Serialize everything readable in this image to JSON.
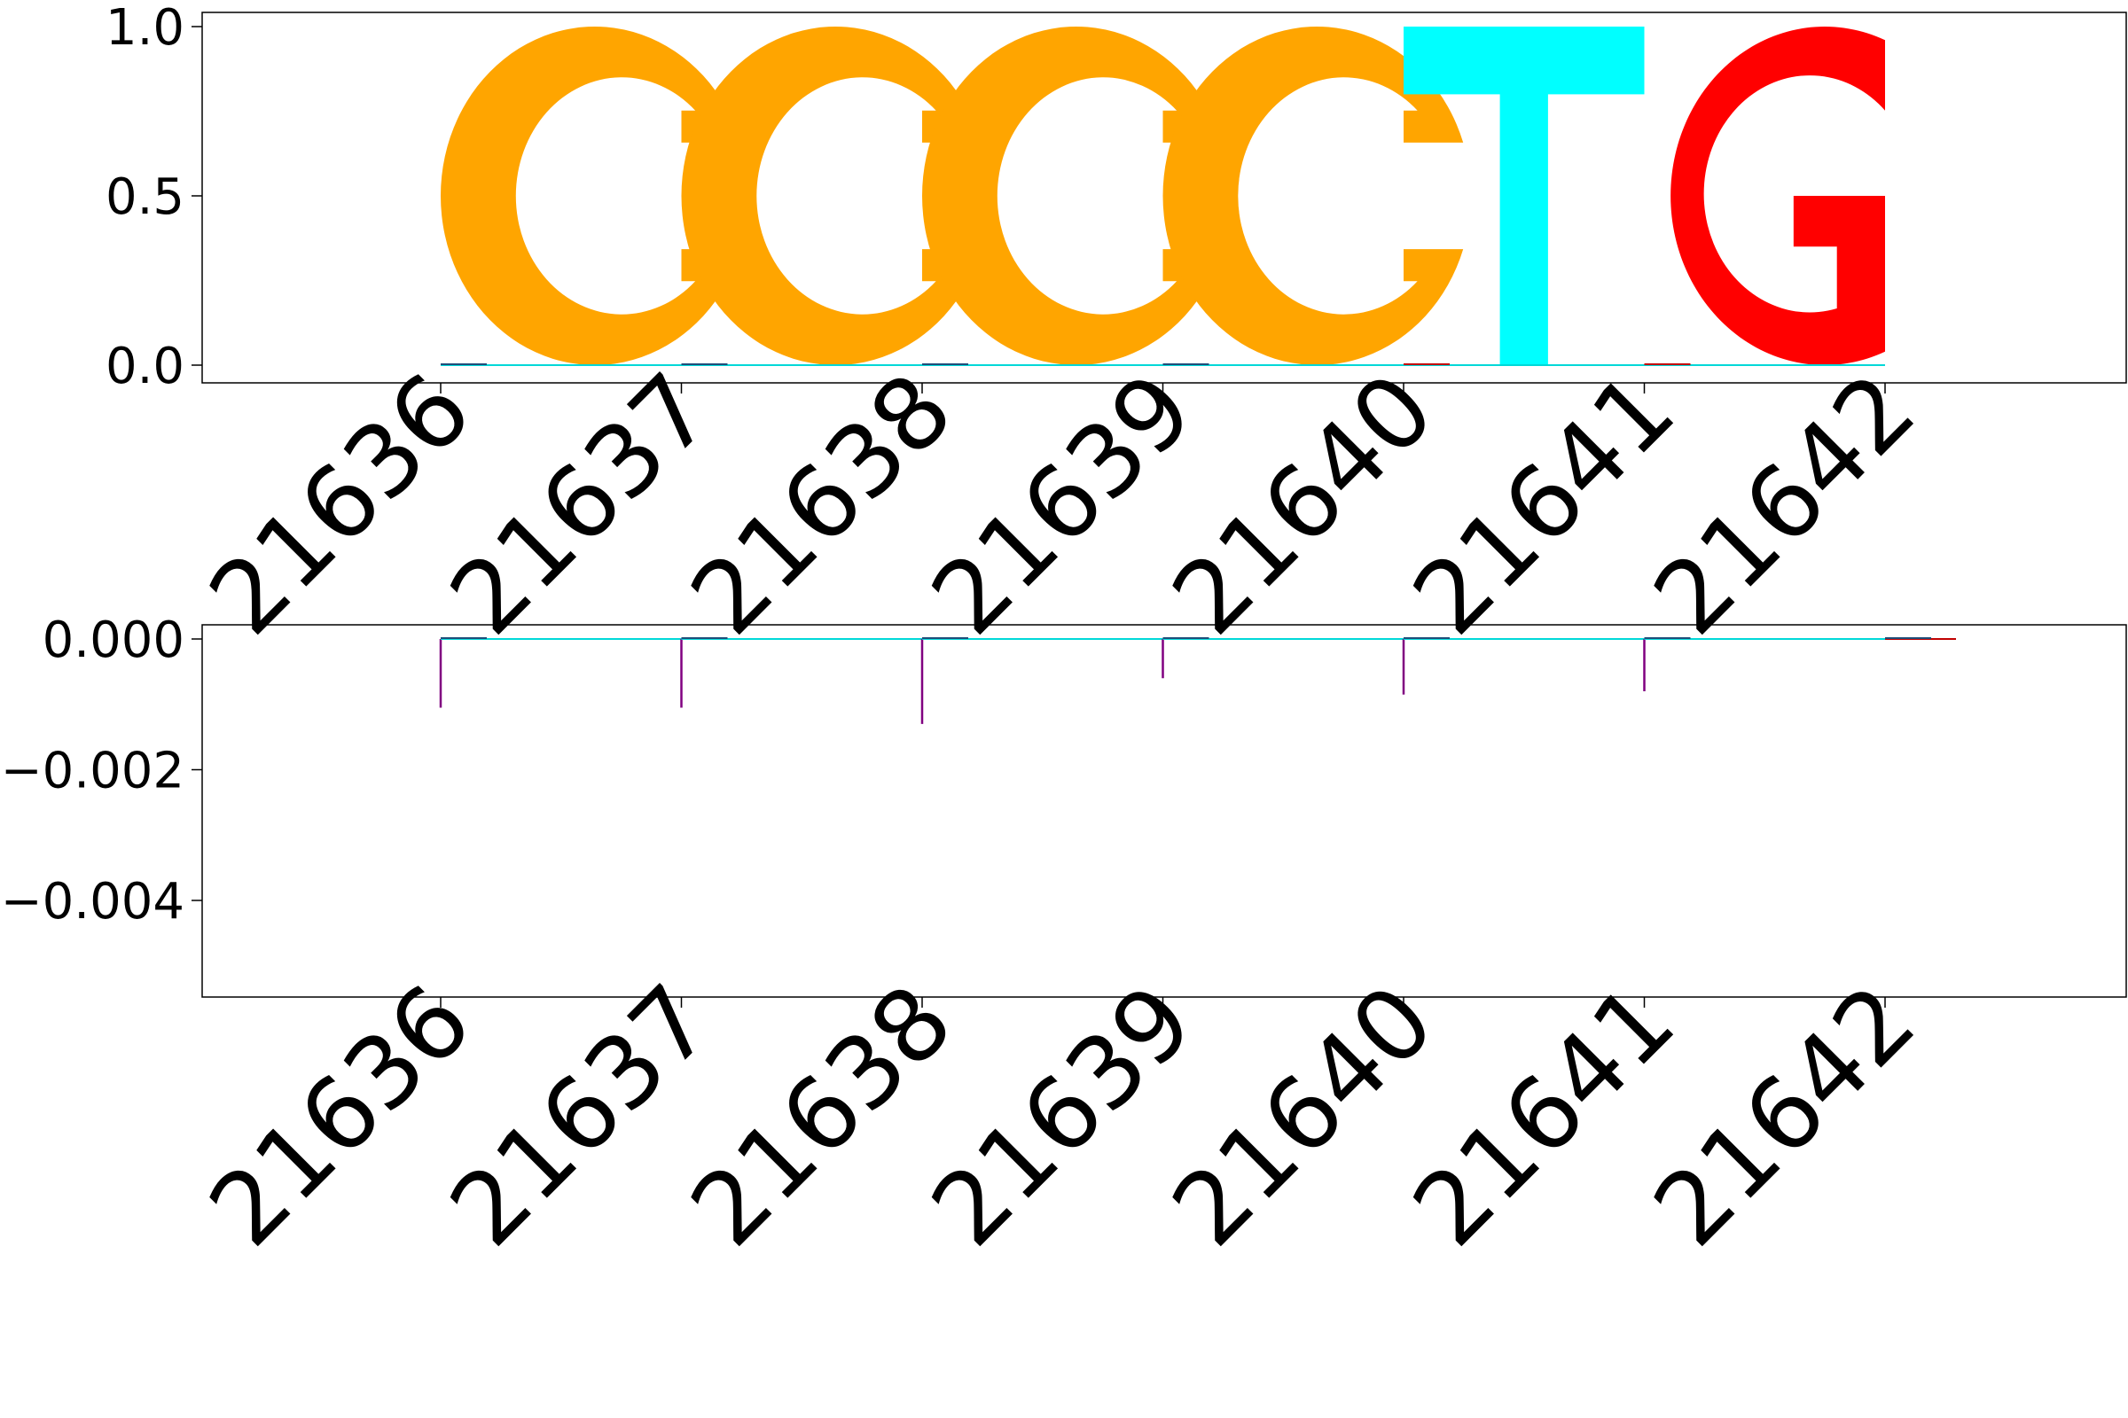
{
  "chart_data": [
    {
      "type": "sequence-logo",
      "positions": [
        "21636",
        "21637",
        "21638",
        "21639",
        "21640",
        "21641",
        "21642"
      ],
      "letters": [
        {
          "letter": "C",
          "position": 21636,
          "height": 1.0,
          "color": "#FFA500"
        },
        {
          "letter": "C",
          "position": 21637,
          "height": 1.0,
          "color": "#FFA500"
        },
        {
          "letter": "C",
          "position": 21638,
          "height": 1.0,
          "color": "#FFA500"
        },
        {
          "letter": "C",
          "position": 21639,
          "height": 1.0,
          "color": "#FFA500"
        },
        {
          "letter": "T",
          "position": 21640,
          "height": 1.0,
          "color": "#00FFFF"
        },
        {
          "letter": "G",
          "position": 21641,
          "height": 1.0,
          "color": "#FF0000"
        }
      ],
      "ylim": [
        -0.05,
        1.05
      ],
      "yticks": [
        "0.0",
        "0.5",
        "1.0"
      ],
      "xlabel": "",
      "ylabel": "",
      "grid": false
    },
    {
      "type": "bar",
      "positions": [
        "21636",
        "21637",
        "21638",
        "21639",
        "21640",
        "21641",
        "21642"
      ],
      "series": [
        {
          "color": "#800080",
          "values": [
            -0.00105,
            -0.00105,
            -0.0013,
            -0.0006,
            -0.00085,
            -0.0008,
            0
          ]
        }
      ],
      "ylim": [
        -0.0055,
        0.00025
      ],
      "yticks": [
        "0.000",
        "−0.002",
        "−0.004"
      ],
      "xlabel": "",
      "ylabel": "",
      "grid": false
    }
  ]
}
